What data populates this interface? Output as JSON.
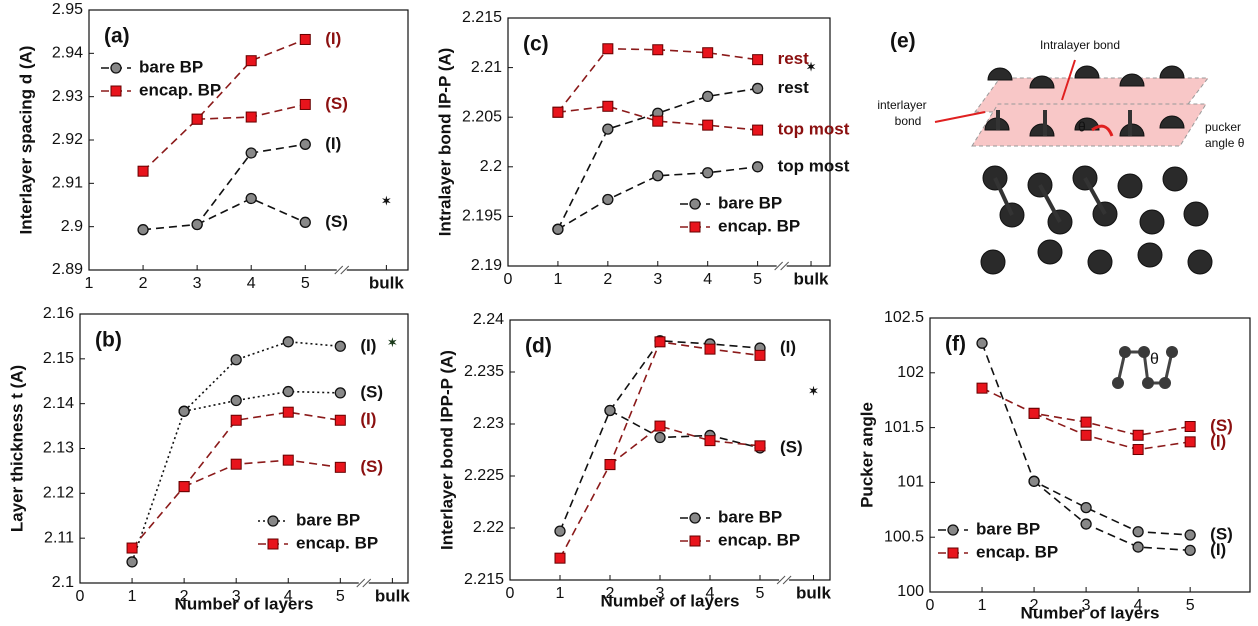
{
  "chart_data": [
    {
      "type": "line",
      "panel_label": "(a)",
      "ylabel": "Interlayer spacing d (A)",
      "xlim": [
        1,
        6.9
      ],
      "ylim": [
        2.89,
        2.95
      ],
      "xticks": [
        1,
        2,
        3,
        4,
        5,
        {
          "value": 6.5,
          "label": "bulk"
        }
      ],
      "yticks": [
        2.89,
        2.9,
        2.91,
        2.92,
        2.93,
        2.94,
        2.95
      ],
      "legend": "upper left",
      "series": [
        {
          "name": "bare BP",
          "color": "#888888",
          "line_color": "#111111",
          "label_color": "#111111",
          "marker": "circle",
          "dash": "dashed",
          "curves": [
            {
              "label": "(I)",
              "x": [
                2,
                3,
                4,
                5
              ],
              "values": [
                2.8993,
                2.9005,
                2.917,
                2.919
              ]
            },
            {
              "label": "(S)",
              "x": [
                3,
                4,
                5
              ],
              "values": [
                2.9005,
                2.9065,
                2.901
              ]
            }
          ]
        },
        {
          "name": "encap. BP",
          "color": "#e8141c",
          "line_color": "#8b1a1a",
          "label_color": "#8b1010",
          "marker": "square",
          "dash": "dashed",
          "curves": [
            {
              "label": "(I)",
              "x": [
                2,
                3,
                4,
                5
              ],
              "values": [
                2.9128,
                2.9248,
                2.9383,
                2.9432
              ]
            },
            {
              "label": "(S)",
              "x": [
                3,
                4,
                5
              ],
              "values": [
                2.9248,
                2.9253,
                2.9282
              ]
            }
          ]
        }
      ],
      "bulk": {
        "x": 6.5,
        "y": 2.906,
        "color": "#111111"
      }
    },
    {
      "type": "line",
      "panel_label": "(b)",
      "ylabel": "Layer thickness t (A)",
      "xlabel": "Number of layers",
      "xlim": [
        0,
        6.3
      ],
      "ylim": [
        2.1,
        2.16
      ],
      "xticks": [
        0,
        1,
        2,
        3,
        4,
        5,
        {
          "value": 6.0,
          "label": "bulk"
        }
      ],
      "yticks": [
        2.1,
        2.11,
        2.12,
        2.13,
        2.14,
        2.15,
        2.16
      ],
      "legend": "lower right",
      "series": [
        {
          "name": "bare BP",
          "color": "#888888",
          "line_color": "#111111",
          "label_color": "#111111",
          "marker": "circle",
          "dash": "dotted",
          "curves": [
            {
              "label": "(I)",
              "x": [
                1,
                2,
                3,
                4,
                5
              ],
              "values": [
                2.1047,
                2.1383,
                2.1498,
                2.1538,
                2.1528
              ]
            },
            {
              "label": "(S)",
              "x": [
                2,
                3,
                4,
                5
              ],
              "values": [
                2.1383,
                2.1407,
                2.1427,
                2.1424
              ]
            }
          ]
        },
        {
          "name": "encap. BP",
          "color": "#e8141c",
          "line_color": "#8b1a1a",
          "label_color": "#8b1010",
          "marker": "square",
          "dash": "dashed",
          "curves": [
            {
              "label": "(I)",
              "x": [
                1,
                2,
                3,
                4,
                5
              ],
              "values": [
                2.1078,
                2.1215,
                2.1363,
                2.1381,
                2.1363
              ]
            },
            {
              "label": "(S)",
              "x": [
                2,
                3,
                4,
                5
              ],
              "values": [
                2.1215,
                2.1265,
                2.1274,
                2.1258
              ]
            }
          ]
        }
      ],
      "bulk": {
        "x": 6.0,
        "y": 2.1537,
        "color": "#1a3a1a"
      }
    },
    {
      "type": "line",
      "panel_label": "(c)",
      "ylabel": "Intralayer bond lP-P (A)",
      "xlim": [
        0,
        6.45
      ],
      "ylim": [
        2.19,
        2.215
      ],
      "xticks": [
        0,
        1,
        2,
        3,
        4,
        5,
        {
          "value": 6.07,
          "label": "bulk"
        }
      ],
      "yticks": [
        2.19,
        2.195,
        2.2,
        2.205,
        2.21,
        2.215
      ],
      "legend": "lower right",
      "series": [
        {
          "name": "bare BP",
          "color": "#888888",
          "line_color": "#111111",
          "label_color": "#111111",
          "marker": "circle",
          "dash": "dashed",
          "curves": [
            {
              "label": "rest",
              "x": [
                1,
                2,
                3,
                4,
                5
              ],
              "values": [
                2.1937,
                2.2038,
                2.2054,
                2.2071,
                2.2079
              ]
            },
            {
              "label": "top most",
              "x": [
                1,
                2,
                3,
                4,
                5
              ],
              "values": [
                2.1937,
                2.1967,
                2.1991,
                2.1994,
                2.2
              ]
            }
          ]
        },
        {
          "name": "encap. BP",
          "color": "#e8141c",
          "line_color": "#8b1a1a",
          "label_color": "#8b1010",
          "marker": "square",
          "dash": "dashed",
          "curves": [
            {
              "label": "rest",
              "x": [
                1,
                2,
                3,
                4,
                5
              ],
              "values": [
                2.2055,
                2.2119,
                2.2118,
                2.2115,
                2.2108
              ]
            },
            {
              "label": "top most",
              "x": [
                1,
                2,
                3,
                4,
                5
              ],
              "values": [
                2.2055,
                2.2061,
                2.2046,
                2.2042,
                2.2037
              ]
            }
          ]
        }
      ],
      "bulk": {
        "x": 6.07,
        "y": 2.2101,
        "color": "#111111"
      }
    },
    {
      "type": "line",
      "panel_label": "(d)",
      "ylabel": "Interlayer bond lPP-P (A)",
      "xlabel": "Number of layers",
      "xlim": [
        0,
        6.4
      ],
      "ylim": [
        2.215,
        2.24
      ],
      "xticks": [
        0,
        1,
        2,
        3,
        4,
        5,
        {
          "value": 6.07,
          "label": "bulk"
        }
      ],
      "yticks": [
        2.215,
        2.22,
        2.225,
        2.23,
        2.235,
        2.24
      ],
      "legend": "lower right",
      "series": [
        {
          "name": "bare BP",
          "color": "#888888",
          "line_color": "#111111",
          "label_color": "#111111",
          "marker": "circle",
          "dash": "dashed",
          "curves": [
            {
              "label": "(I)",
              "x": [
                1,
                2,
                3,
                4,
                5
              ],
              "values": [
                2.2197,
                2.2313,
                2.238,
                2.2377,
                2.2373
              ]
            },
            {
              "label": "(S)",
              "x": [
                2,
                3,
                4,
                5
              ],
              "values": [
                2.2313,
                2.2287,
                2.2289,
                2.2277
              ]
            }
          ]
        },
        {
          "name": "encap. BP",
          "color": "#e8141c",
          "line_color": "#8b1a1a",
          "label_color": "#8b1010",
          "marker": "square",
          "dash": "dashed",
          "curves": [
            {
              "label": null,
              "x": [
                1,
                2,
                3,
                4,
                5
              ],
              "values": [
                2.2171,
                2.2261,
                2.2379,
                2.2372,
                2.2366
              ]
            },
            {
              "label": null,
              "x": [
                2,
                3,
                4,
                5
              ],
              "values": [
                2.2261,
                2.2298,
                2.2284,
                2.2279
              ]
            }
          ]
        }
      ],
      "bulk": {
        "x": 6.07,
        "y": 2.2332,
        "color": "#111111"
      }
    },
    {
      "type": "line",
      "panel_label": "(f)",
      "ylabel": "Pucker angle",
      "xlabel": "Number of layers",
      "xlim": [
        0,
        6.15
      ],
      "ylim": [
        100,
        102.5
      ],
      "xticks": [
        0,
        1,
        2,
        3,
        4,
        5
      ],
      "yticks": [
        100,
        100.5,
        101,
        101.5,
        102,
        102.5
      ],
      "legend": "lower left",
      "inset_label": "θ",
      "series": [
        {
          "name": "bare BP",
          "color": "#888888",
          "line_color": "#111111",
          "label_color": "#111111",
          "marker": "circle",
          "dash": "dashed",
          "curves": [
            {
              "label": "(S)",
              "x": [
                1,
                2,
                3,
                4,
                5
              ],
              "values": [
                102.27,
                101.01,
                100.77,
                100.55,
                100.52
              ]
            },
            {
              "label": "(I)",
              "x": [
                2,
                3,
                4,
                5
              ],
              "values": [
                101.01,
                100.62,
                100.41,
                100.38
              ]
            }
          ]
        },
        {
          "name": "encap. BP",
          "color": "#e8141c",
          "line_color": "#8b1a1a",
          "label_color": "#8b1010",
          "marker": "square",
          "dash": "dashed",
          "curves": [
            {
              "label": "(S)",
              "x": [
                1,
                2,
                3,
                4,
                5
              ],
              "values": [
                101.86,
                101.63,
                101.55,
                101.43,
                101.51
              ]
            },
            {
              "label": "(I)",
              "x": [
                2,
                3,
                4,
                5
              ],
              "values": [
                101.63,
                101.43,
                101.3,
                101.37
              ]
            }
          ]
        }
      ]
    }
  ],
  "diagram": {
    "panel_label": "(e)",
    "intralayer": "Intralayer bond",
    "interlayer": [
      "interlayer",
      "bond"
    ],
    "pucker": [
      "pucker",
      "angle θ"
    ],
    "theta": "θ"
  }
}
